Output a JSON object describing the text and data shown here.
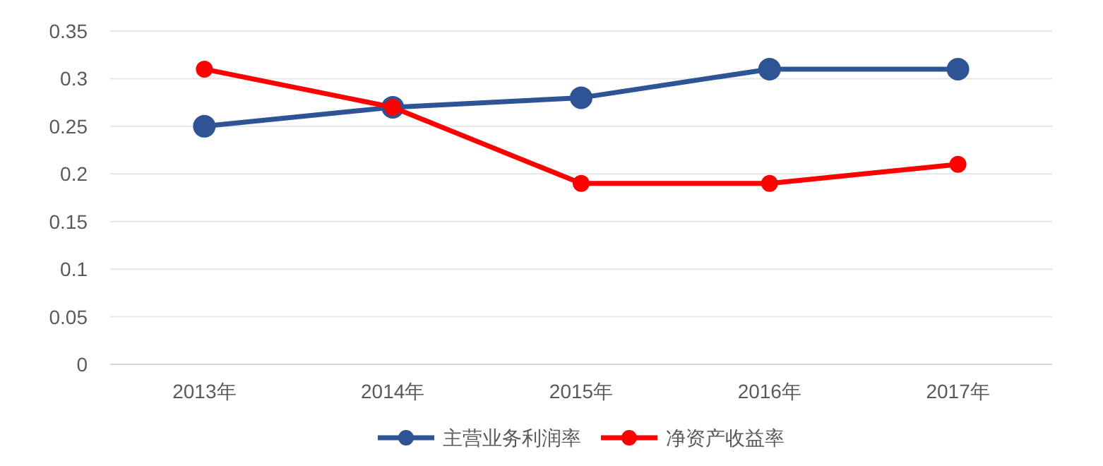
{
  "chart_data": {
    "type": "line",
    "categories": [
      "2013年",
      "2014年",
      "2015年",
      "2016年",
      "2017年"
    ],
    "series": [
      {
        "name": "主营业务利润率",
        "color": "#2f5496",
        "values": [
          0.25,
          0.27,
          0.28,
          0.31,
          0.31
        ]
      },
      {
        "name": "净资产收益率",
        "color": "#ff0000",
        "values": [
          0.31,
          0.27,
          0.19,
          0.19,
          0.21
        ]
      }
    ],
    "ylim": [
      0,
      0.35
    ],
    "yticks": [
      0,
      0.05,
      0.1,
      0.15,
      0.2,
      0.25,
      0.3,
      0.35
    ],
    "grid": "y",
    "legend": "bottom",
    "marker": "circle"
  }
}
